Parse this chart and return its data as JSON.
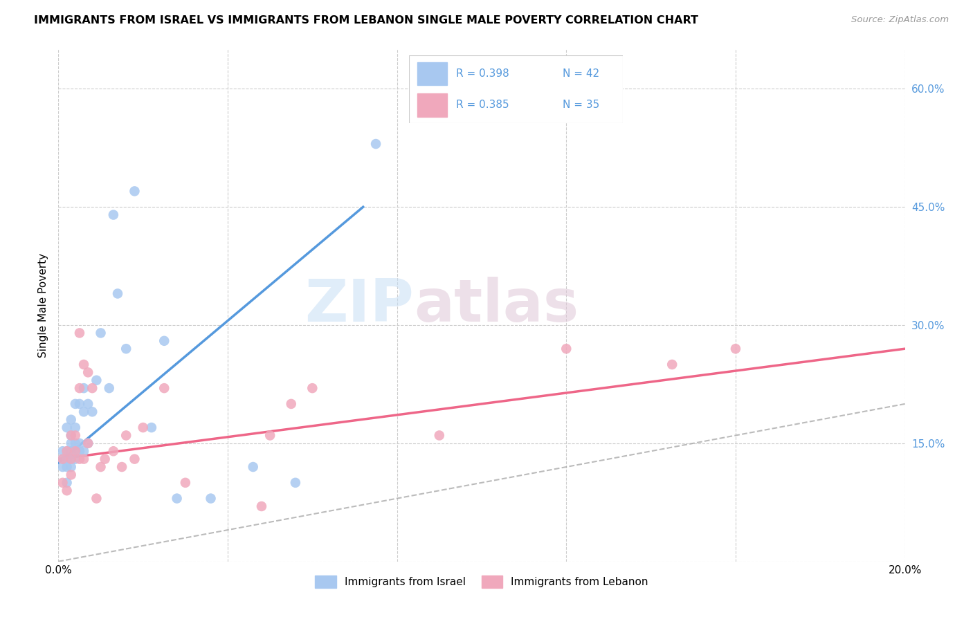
{
  "title": "IMMIGRANTS FROM ISRAEL VS IMMIGRANTS FROM LEBANON SINGLE MALE POVERTY CORRELATION CHART",
  "source": "Source: ZipAtlas.com",
  "ylabel": "Single Male Poverty",
  "xlim": [
    0.0,
    0.2
  ],
  "ylim": [
    0.0,
    0.65
  ],
  "xticks": [
    0.0,
    0.04,
    0.08,
    0.12,
    0.16,
    0.2
  ],
  "xtick_labels": [
    "0.0%",
    "",
    "",
    "",
    "",
    "20.0%"
  ],
  "ytick_labels_right": [
    "",
    "15.0%",
    "30.0%",
    "45.0%",
    "60.0%"
  ],
  "yticks_right": [
    0.0,
    0.15,
    0.3,
    0.45,
    0.6
  ],
  "israel_color": "#a8c8f0",
  "lebanon_color": "#f0a8bc",
  "israel_line_color": "#5599dd",
  "lebanon_line_color": "#ee6688",
  "dashed_line_color": "#aaaaaa",
  "legend_bottom_israel": "Immigrants from Israel",
  "legend_bottom_lebanon": "Immigrants from Lebanon",
  "watermark_zip": "ZIP",
  "watermark_atlas": "atlas",
  "israel_line_x0": 0.0,
  "israel_line_y0": 0.125,
  "israel_line_x1": 0.072,
  "israel_line_y1": 0.45,
  "lebanon_line_x0": 0.0,
  "lebanon_line_y0": 0.13,
  "lebanon_line_x1": 0.2,
  "lebanon_line_y1": 0.27,
  "israel_x": [
    0.001,
    0.001,
    0.001,
    0.002,
    0.002,
    0.002,
    0.002,
    0.002,
    0.003,
    0.003,
    0.003,
    0.003,
    0.003,
    0.003,
    0.004,
    0.004,
    0.004,
    0.004,
    0.004,
    0.005,
    0.005,
    0.005,
    0.006,
    0.006,
    0.006,
    0.007,
    0.007,
    0.008,
    0.009,
    0.01,
    0.012,
    0.013,
    0.014,
    0.016,
    0.018,
    0.022,
    0.025,
    0.028,
    0.036,
    0.046,
    0.056,
    0.075
  ],
  "israel_y": [
    0.12,
    0.13,
    0.14,
    0.1,
    0.12,
    0.13,
    0.14,
    0.17,
    0.12,
    0.13,
    0.14,
    0.15,
    0.16,
    0.18,
    0.13,
    0.14,
    0.15,
    0.17,
    0.2,
    0.14,
    0.15,
    0.2,
    0.14,
    0.19,
    0.22,
    0.15,
    0.2,
    0.19,
    0.23,
    0.29,
    0.22,
    0.44,
    0.34,
    0.27,
    0.47,
    0.17,
    0.28,
    0.08,
    0.08,
    0.12,
    0.1,
    0.53
  ],
  "lebanon_x": [
    0.001,
    0.001,
    0.002,
    0.002,
    0.003,
    0.003,
    0.003,
    0.004,
    0.004,
    0.005,
    0.005,
    0.005,
    0.006,
    0.006,
    0.007,
    0.007,
    0.008,
    0.009,
    0.01,
    0.011,
    0.013,
    0.015,
    0.016,
    0.018,
    0.02,
    0.025,
    0.03,
    0.048,
    0.05,
    0.055,
    0.06,
    0.09,
    0.12,
    0.145,
    0.16
  ],
  "lebanon_y": [
    0.1,
    0.13,
    0.09,
    0.14,
    0.11,
    0.13,
    0.16,
    0.14,
    0.16,
    0.13,
    0.22,
    0.29,
    0.13,
    0.25,
    0.15,
    0.24,
    0.22,
    0.08,
    0.12,
    0.13,
    0.14,
    0.12,
    0.16,
    0.13,
    0.17,
    0.22,
    0.1,
    0.07,
    0.16,
    0.2,
    0.22,
    0.16,
    0.27,
    0.25,
    0.27
  ]
}
